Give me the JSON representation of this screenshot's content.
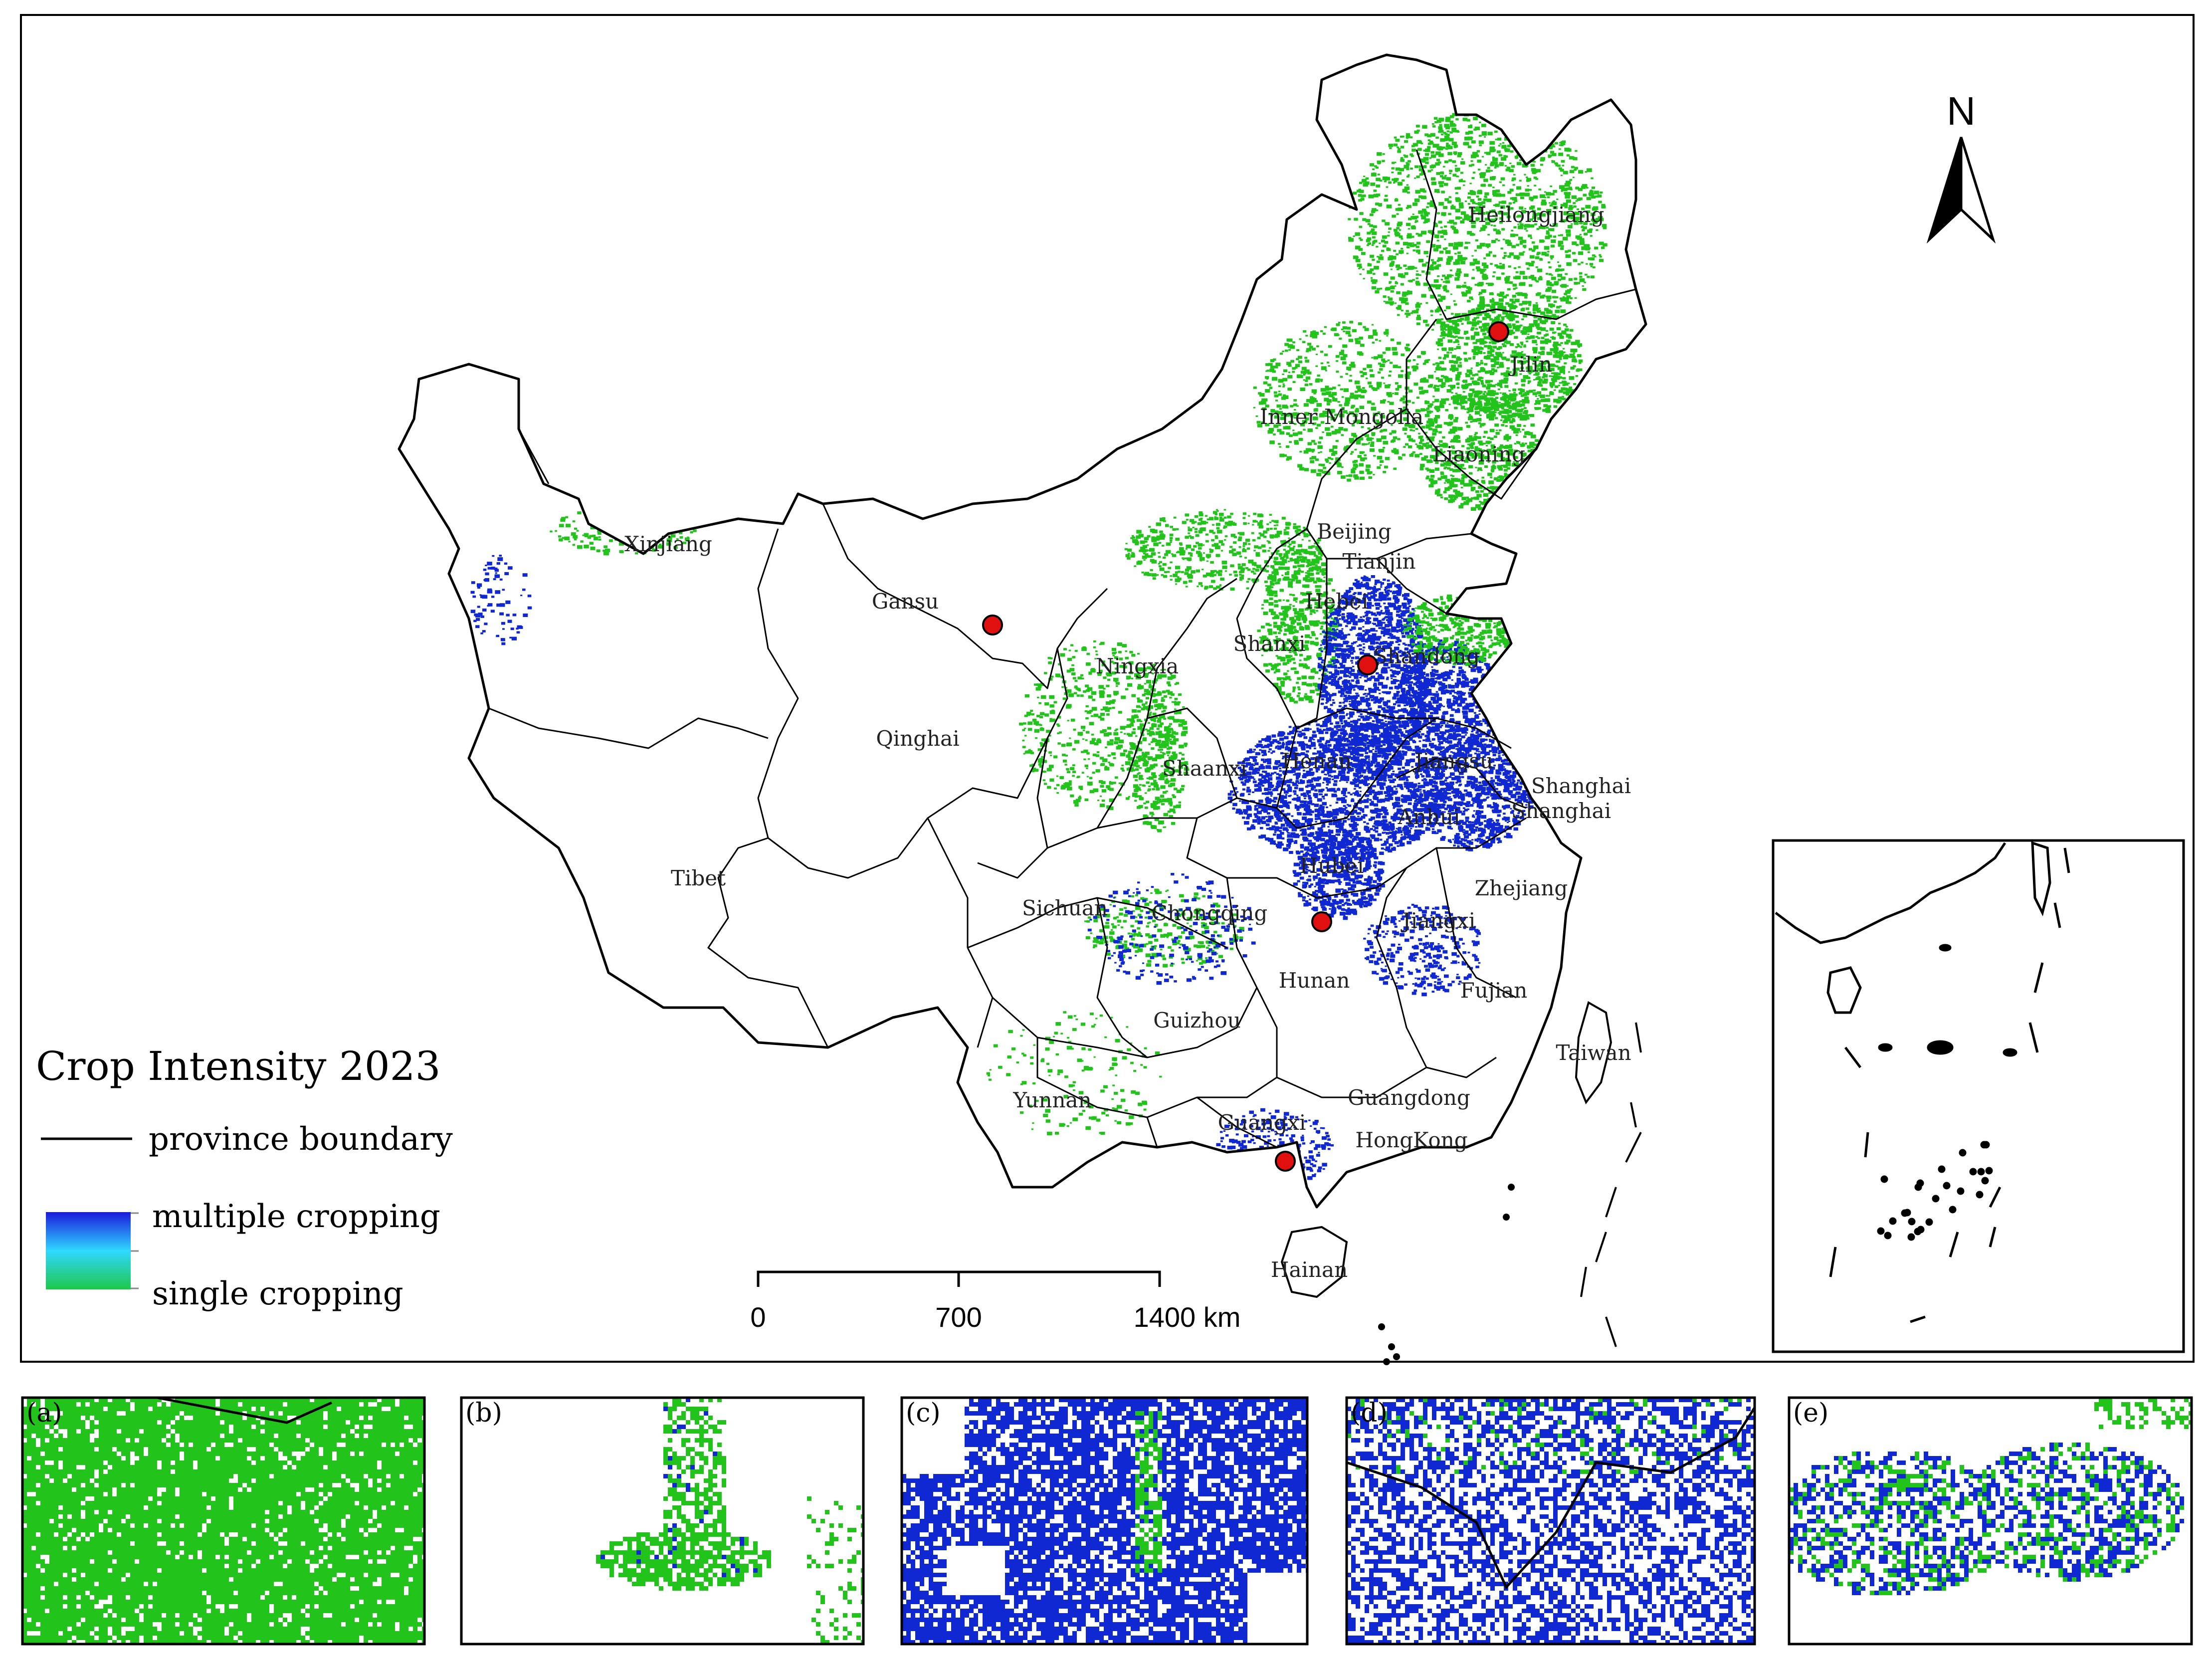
{
  "legend": {
    "title": "Crop Intensity 2023",
    "boundary_label": "province boundary",
    "high_label": "multiple cropping",
    "low_label": "single cropping",
    "colors": {
      "high": "#1a1adc",
      "mid": "#2fd8ff",
      "low": "#1ec84a",
      "single": "#22c41c",
      "multiple": "#1028d2",
      "sites": "#e01010"
    }
  },
  "scalebar": {
    "ticks": [
      "0",
      "700",
      "1400 km"
    ]
  },
  "north_arrow": {
    "label": "N",
    "icon": "north-arrow-icon"
  },
  "provinces": [
    {
      "name": "Heilongjiang"
    },
    {
      "name": "Jilin"
    },
    {
      "name": "Liaoning"
    },
    {
      "name": "Inner Mongolia"
    },
    {
      "name": "Xinjiang"
    },
    {
      "name": "Gansu"
    },
    {
      "name": "Beijing"
    },
    {
      "name": "Tianjin"
    },
    {
      "name": "Hebei"
    },
    {
      "name": "Shanxi"
    },
    {
      "name": "Shandong"
    },
    {
      "name": "Ningxia"
    },
    {
      "name": "Qinghai"
    },
    {
      "name": "Shaanxi"
    },
    {
      "name": "Henan"
    },
    {
      "name": "Jiangsu"
    },
    {
      "name": "Shanghai"
    },
    {
      "name": "Anhui"
    },
    {
      "name": "Shanghai"
    },
    {
      "name": "Tibet"
    },
    {
      "name": "Hubei"
    },
    {
      "name": "Zhejiang"
    },
    {
      "name": "Sichuan"
    },
    {
      "name": "Chongqing"
    },
    {
      "name": "Jiangxi"
    },
    {
      "name": "Hunan"
    },
    {
      "name": "Fujian"
    },
    {
      "name": "Guizhou"
    },
    {
      "name": "Taiwan"
    },
    {
      "name": "Yunnan"
    },
    {
      "name": "Guangdong"
    },
    {
      "name": "Guangxi"
    },
    {
      "name": "HongKong"
    },
    {
      "name": "Hainan"
    }
  ],
  "panels": [
    {
      "label": "(a)",
      "palette": "single"
    },
    {
      "label": "(b)",
      "palette": "sparse-single"
    },
    {
      "label": "(c)",
      "palette": "multiple"
    },
    {
      "label": "(d)",
      "palette": "mixed-multiple"
    },
    {
      "label": "(e)",
      "palette": "mixed-sparse"
    }
  ]
}
